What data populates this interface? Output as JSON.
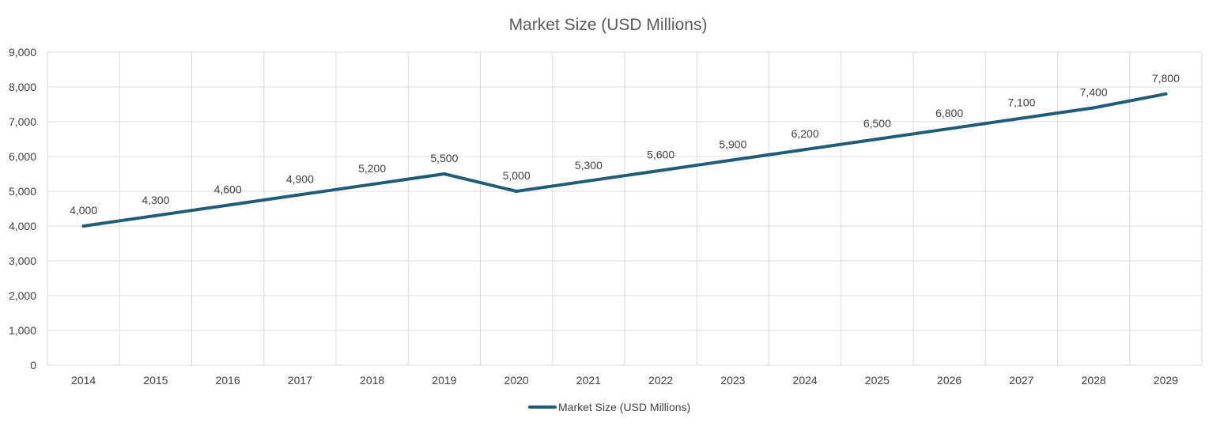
{
  "chart_data": {
    "type": "line",
    "title": "Market Size (USD Millions)",
    "xlabel": "",
    "ylabel": "",
    "categories": [
      "2014",
      "2015",
      "2016",
      "2017",
      "2018",
      "2019",
      "2020",
      "2021",
      "2022",
      "2023",
      "2024",
      "2025",
      "2026",
      "2027",
      "2028",
      "2029"
    ],
    "series": [
      {
        "name": "Market Size (USD Millions)",
        "color": "#1f5c78",
        "values": [
          4000,
          4300,
          4600,
          4900,
          5200,
          5500,
          5000,
          5300,
          5600,
          5900,
          6200,
          6500,
          6800,
          7100,
          7400,
          7800
        ],
        "data_labels": [
          "4,000",
          "4,300",
          "4,600",
          "4,900",
          "5,200",
          "5,500",
          "5,000",
          "5,300",
          "5,600",
          "5,900",
          "6,200",
          "6,500",
          "6,800",
          "7,100",
          "7,400",
          "7,800"
        ]
      }
    ],
    "y_ticks": [
      "0",
      "1,000",
      "2,000",
      "3,000",
      "4,000",
      "5,000",
      "6,000",
      "7,000",
      "8,000",
      "9,000"
    ],
    "ylim": [
      0,
      9000
    ],
    "grid": true,
    "legend_position": "bottom"
  }
}
